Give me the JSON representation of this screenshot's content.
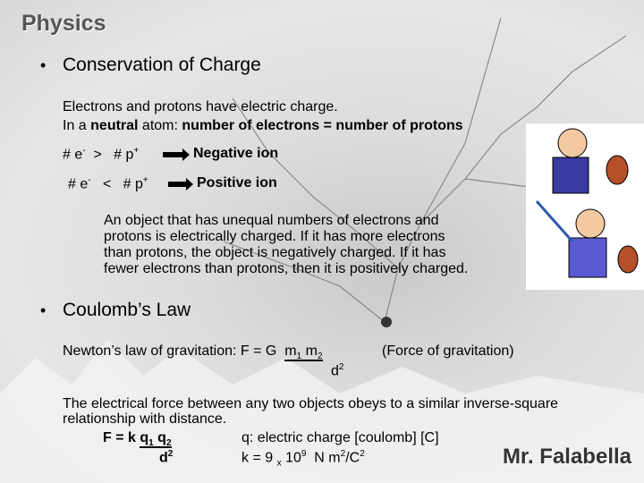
{
  "title": "Physics",
  "footer": "Mr. Falabella",
  "bullets": [
    "Conservation of Charge",
    "Coulomb’s Law"
  ],
  "intro": {
    "line1": "Electrons and protons have electric charge.",
    "line2": [
      "In a ",
      "neutral",
      " atom: ",
      "number of electrons = number of protons"
    ]
  },
  "ions": [
    {
      "e": "# e",
      "esup": "-",
      "op": ">",
      "p": "# p",
      "psup": "+",
      "result": "Negative ion"
    },
    {
      "e": "# e",
      "esup": "-",
      "op": "<",
      "p": "# p",
      "psup": "+",
      "result": "Positive ion"
    }
  ],
  "paragraph": [
    "An object that has unequal numbers of electrons and",
    "protons is electrically charged. If it has more electrons",
    "than protons, the object is negatively charged. If it has",
    "fewer electrons than protons, then it is positively charged."
  ],
  "gravitation": {
    "label": "Newton’s law of gravitation:  F = G",
    "m": "m",
    "sub1": "1",
    "sub2": "2",
    "d": "d",
    "dsup": "2",
    "note": "(Force of gravitation)"
  },
  "coulomb_text": [
    "The electrical force between any two objects obeys to a similar inverse-square",
    "relationship with distance."
  ],
  "coulomb": {
    "lhs": "F = k",
    "q": "q",
    "sub1": "1",
    "sub2": "2",
    "d": "d",
    "dsup": "2",
    "def_q": "q: electric charge [coulomb]  [C]",
    "k": "k = 9",
    "times": "x",
    "ten": "10",
    "exp": "9",
    "unit": "N m",
    "usup": "2",
    "per": "/C",
    "csup": "2"
  }
}
